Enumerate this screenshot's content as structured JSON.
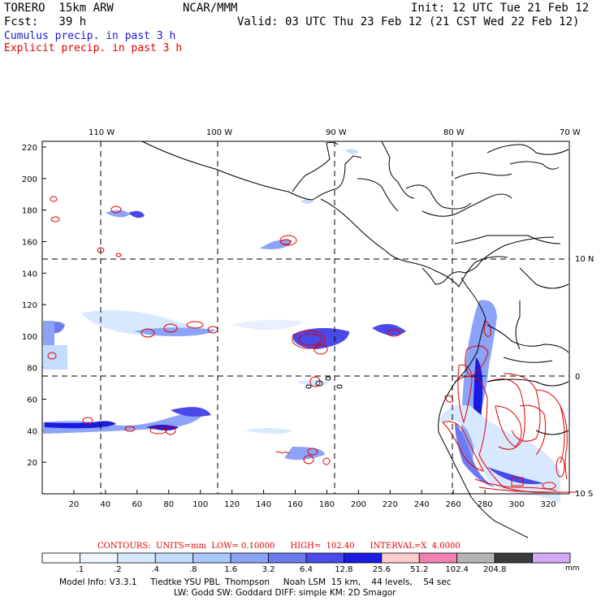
{
  "header": {
    "model": "TORERO  15km ARW",
    "org": "NCAR/MMM",
    "init": "Init: 12 UTC Tue 21 Feb 12",
    "fcst": "Fcst:   39 h",
    "valid": "Valid: 03 UTC Thu 23 Feb 12 (21 CST Wed 22 Feb 12)",
    "line_cumulus": "Cumulus precip. in past 3 h",
    "line_explicit": "Explicit precip. in past 3 h"
  },
  "axes": {
    "lon_labels": [
      "110 W",
      "100 W",
      "90 W",
      "80 W",
      "70 W"
    ],
    "lat_labels": [
      "10 N",
      "0",
      "10 S"
    ],
    "y_ticks": [
      220,
      200,
      180,
      160,
      140,
      120,
      100,
      80,
      60,
      40,
      20
    ],
    "x_ticks": [
      20,
      40,
      60,
      80,
      100,
      120,
      140,
      160,
      180,
      200,
      220,
      240,
      260,
      280,
      300,
      320
    ]
  },
  "contours": {
    "text": "CONTOURS:  UNITS=mm  LOW= 0.10000      HIGH=  102.40      INTERVAL=X  4.0000"
  },
  "colorbar": {
    "colors": [
      "#ffffff",
      "#f0f6ff",
      "#d8e8ff",
      "#c4dcff",
      "#a8c8ff",
      "#8ca4f8",
      "#6c7cf0",
      "#4a4ae8",
      "#1a1ae0",
      "#ffcccc",
      "#f080b0",
      "#b4b4b4",
      "#3c3c3c",
      "#d4a8f4"
    ],
    "labels": [
      ".1",
      ".2",
      ".4",
      ".8",
      "1.6",
      "3.2",
      "6.4",
      "12.8",
      "25.6",
      "51.2",
      "102.4",
      "204.8"
    ],
    "units": "mm"
  },
  "footer": {
    "line1": "Model Info: V3.3.1     Tiedtke YSU PBL  Thompson     Noah LSM  15 km,    44 levels,    54 sec",
    "line2": "LW: Godd SW: Goddard DIFF: simple KM: 2D Smagor"
  }
}
